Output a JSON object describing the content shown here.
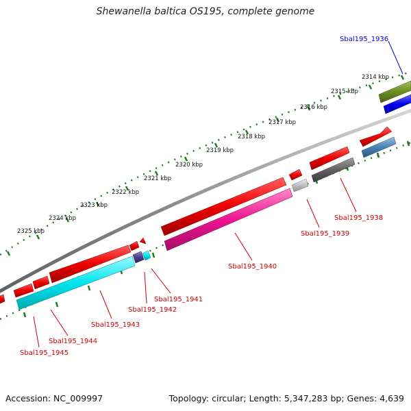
{
  "title": "Shewanella baltica OS195, complete genome",
  "footer": {
    "accession": "Accession: NC_009997",
    "summary": "Topology: circular; Length: 5,347,283 bp; Genes: 4,639"
  },
  "ruler_labels": [
    "2314 kbp",
    "2315 kbp",
    "2316 kbp",
    "2317 kbp",
    "2318 kbp",
    "2319 kbp",
    "2320 kbp",
    "2321 kbp",
    "2322 kbp",
    "2323 kbp",
    "2324 kbp",
    "2325 kbp"
  ],
  "gene_labels": [
    "Sbal195_1936",
    "Sbal195_1938",
    "Sbal195_1939",
    "Sbal195_1940",
    "Sbal195_1941",
    "Sbal195_1942",
    "Sbal195_1943",
    "Sbal195_1944",
    "Sbal195_1945"
  ],
  "colors": {
    "forward_gene": "#ee0000",
    "tick_green": "#1e7a1e",
    "backbone": "#808080",
    "cyan": "#00e5ee",
    "magenta": "#ee1493",
    "olive": "#6b8e23",
    "blue": "#0000ee",
    "steelblue": "#4682b4",
    "darkgray": "#606060",
    "lightgray": "#c0c0c0",
    "slate": "#483d8b",
    "label_red": "#cc0000",
    "label_blue": "#0000cc"
  }
}
